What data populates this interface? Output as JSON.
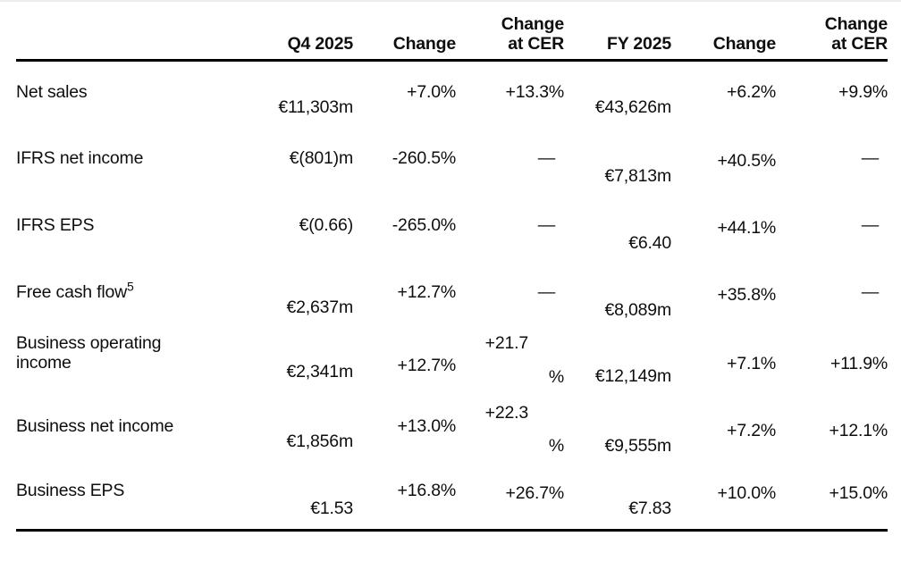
{
  "page": {
    "background": "#ffffff",
    "text_color": "#0e0e0e",
    "rule_color": "#000000",
    "top_hairline_color": "#ededed"
  },
  "table": {
    "headers": {
      "row_label": "",
      "q4": {
        "line1": "",
        "line2": "Q4 2025"
      },
      "q4_change": {
        "line1": "",
        "line2": "Change"
      },
      "q4_cer": {
        "line1": "Change",
        "line2": "at CER"
      },
      "fy": {
        "line1": "",
        "line2": "FY 2025"
      },
      "fy_change": {
        "line1": "",
        "line2": "Change"
      },
      "fy_cer": {
        "line1": "Change",
        "line2": "at CER"
      }
    },
    "rows": [
      {
        "label_lines": [
          "Net sales"
        ],
        "q4": "€11,303m",
        "q4_change": "+7.0%",
        "q4_cer": "+13.3%",
        "fy": "€43,626m",
        "fy_change": "+6.2%",
        "fy_cer": "+9.9%"
      },
      {
        "label_lines": [
          "IFRS net income"
        ],
        "q4": "€(801)m",
        "q4_change": "-260.5%",
        "q4_cer": "—",
        "fy": "€7,813m",
        "fy_change": "+40.5%",
        "fy_cer": "—"
      },
      {
        "label_lines": [
          "IFRS EPS"
        ],
        "q4": "€(0.66)",
        "q4_change": "-265.0%",
        "q4_cer": "—",
        "fy": "€6.40",
        "fy_change": "+44.1%",
        "fy_cer": "—"
      },
      {
        "label_lines": [
          "Free cash flow"
        ],
        "sup": "5",
        "q4": "€2,637m",
        "q4_change": "+12.7%",
        "q4_cer": "—",
        "fy": "€8,089m",
        "fy_change": "+35.8%",
        "fy_cer": "—"
      },
      {
        "label_lines": [
          "Business operating",
          "income"
        ],
        "q4": "€2,341m",
        "q4_change": "+12.7%",
        "q4_cer": "+21.7",
        "q4_cer_unit": "%",
        "fy": "€12,149m",
        "fy_change": "+7.1%",
        "fy_cer": "+11.9%"
      },
      {
        "label_lines": [
          "Business net income"
        ],
        "q4": "€1,856m",
        "q4_change": "+13.0%",
        "q4_cer": "+22.3",
        "q4_cer_unit": "%",
        "fy": "€9,555m",
        "fy_change": "+7.2%",
        "fy_cer": "+12.1%"
      },
      {
        "label_lines": [
          "Business EPS"
        ],
        "q4": "€1.53",
        "q4_change": "+16.8%",
        "q4_cer": "+26.7%",
        "fy": "€7.83",
        "fy_change": "+10.0%",
        "fy_cer": "+15.0%"
      }
    ]
  }
}
